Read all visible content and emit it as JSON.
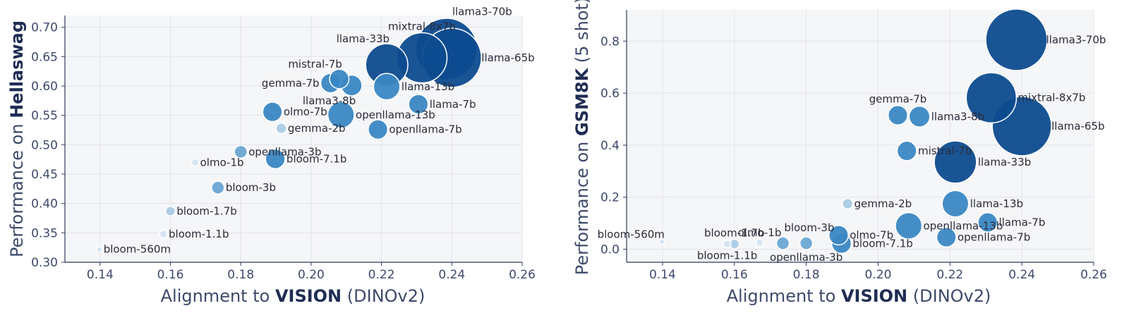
{
  "colors": {
    "plot_bg": "#f5f6f8",
    "grid": "#e2e4e8",
    "axis": "#2f3b5c",
    "scale": [
      "#d3e4f3",
      "#a9cbe6",
      "#6aa6d2",
      "#3a87c3",
      "#1c64ad",
      "#0d4b8f"
    ]
  },
  "chart_data": [
    {
      "type": "scatter",
      "id": "hellaswag",
      "xlabel_prefix": "Alignment to ",
      "xlabel_bold": "VISION",
      "xlabel_suffix": " (DINOv2)",
      "ylabel_prefix": "Performance on ",
      "ylabel_bold": "Hellaswag",
      "ylabel_suffix": "",
      "xlim": [
        0.13,
        0.26
      ],
      "ylim": [
        0.3,
        0.72
      ],
      "xticks": [
        0.14,
        0.16,
        0.18,
        0.2,
        0.22,
        0.24,
        0.26
      ],
      "xtick_labels": [
        "0.14",
        "0.16",
        "0.18",
        "0.20",
        "0.22",
        "0.24",
        "0.26"
      ],
      "yticks": [
        0.3,
        0.35,
        0.4,
        0.45,
        0.5,
        0.55,
        0.6,
        0.65,
        0.7
      ],
      "ytick_labels": [
        "0.30",
        "0.35",
        "0.40",
        "0.45",
        "0.50",
        "0.55",
        "0.60",
        "0.65",
        "0.70"
      ],
      "points": [
        {
          "name": "bloom-560m",
          "x": 0.1398,
          "y": 0.322,
          "size": 0.56,
          "label_pos": "right"
        },
        {
          "name": "bloom-1.1b",
          "x": 0.158,
          "y": 0.348,
          "size": 1.1,
          "label_pos": "right"
        },
        {
          "name": "bloom-1.7b",
          "x": 0.16,
          "y": 0.387,
          "size": 1.7,
          "label_pos": "right"
        },
        {
          "name": "bloom-3b",
          "x": 0.1735,
          "y": 0.427,
          "size": 3,
          "label_pos": "right"
        },
        {
          "name": "bloom-7.1b",
          "x": 0.1898,
          "y": 0.476,
          "size": 7.1,
          "label_pos": "right"
        },
        {
          "name": "olmo-1b",
          "x": 0.167,
          "y": 0.47,
          "size": 1,
          "label_pos": "right"
        },
        {
          "name": "openllama-3b",
          "x": 0.18,
          "y": 0.488,
          "size": 3,
          "label_pos": "right"
        },
        {
          "name": "gemma-2b",
          "x": 0.1915,
          "y": 0.528,
          "size": 2,
          "label_pos": "right"
        },
        {
          "name": "olmo-7b",
          "x": 0.189,
          "y": 0.556,
          "size": 7,
          "label_pos": "right"
        },
        {
          "name": "openllama-13b",
          "x": 0.2085,
          "y": 0.551,
          "size": 13,
          "label_pos": "right"
        },
        {
          "name": "openllama-7b",
          "x": 0.219,
          "y": 0.526,
          "size": 7,
          "label_pos": "right"
        },
        {
          "name": "gemma-7b",
          "x": 0.2055,
          "y": 0.605,
          "size": 7,
          "label_pos": "left"
        },
        {
          "name": "mistral-7b",
          "x": 0.208,
          "y": 0.612,
          "size": 7,
          "label_pos": "topleft"
        },
        {
          "name": "llama3-8b",
          "x": 0.2115,
          "y": 0.601,
          "size": 8,
          "label_pos": "belowleft"
        },
        {
          "name": "llama-13b",
          "x": 0.2215,
          "y": 0.599,
          "size": 13,
          "label_pos": "right"
        },
        {
          "name": "llama-7b",
          "x": 0.2305,
          "y": 0.569,
          "size": 7,
          "label_pos": "right"
        },
        {
          "name": "llama-33b",
          "x": 0.2215,
          "y": 0.636,
          "size": 33,
          "label_pos": "topleft"
        },
        {
          "name": "mixtral-8x7b",
          "x": 0.2315,
          "y": 0.648,
          "size": 46.7,
          "label_pos": "top"
        },
        {
          "name": "llama-65b",
          "x": 0.24,
          "y": 0.648,
          "size": 65,
          "label_pos": "right"
        },
        {
          "name": "llama3-70b",
          "x": 0.2385,
          "y": 0.663,
          "size": 70,
          "label_pos": "topright"
        }
      ]
    },
    {
      "type": "scatter",
      "id": "gsm8k",
      "xlabel_prefix": "Alignment to ",
      "xlabel_bold": "VISION",
      "xlabel_suffix": " (DINOv2)",
      "ylabel_prefix": "Performance on ",
      "ylabel_bold": "GSM8K",
      "ylabel_suffix": " (5 shot)",
      "xlim": [
        0.13,
        0.26
      ],
      "ylim": [
        -0.05,
        0.92
      ],
      "xticks": [
        0.14,
        0.16,
        0.18,
        0.2,
        0.22,
        0.24,
        0.26
      ],
      "xtick_labels": [
        "0.14",
        "0.16",
        "0.18",
        "0.20",
        "0.22",
        "0.24",
        "0.26"
      ],
      "yticks": [
        0.0,
        0.2,
        0.4,
        0.6,
        0.8
      ],
      "ytick_labels": [
        "0.0",
        "0.2",
        "0.4",
        "0.6",
        "0.8"
      ],
      "points": [
        {
          "name": "bloom-560m",
          "x": 0.1398,
          "y": 0.028,
          "size": 0.56,
          "label_pos": "topleft"
        },
        {
          "name": "bloom-1.1b",
          "x": 0.158,
          "y": 0.02,
          "size": 1.1,
          "label_pos": "below"
        },
        {
          "name": "bloom-1.7b",
          "x": 0.16,
          "y": 0.02,
          "size": 1.7,
          "label_pos": "top"
        },
        {
          "name": "olmo-1b",
          "x": 0.167,
          "y": 0.025,
          "size": 1,
          "label_pos": "top"
        },
        {
          "name": "bloom-3b",
          "x": 0.1735,
          "y": 0.023,
          "size": 3,
          "label_pos": "topright"
        },
        {
          "name": "openllama-3b",
          "x": 0.18,
          "y": 0.023,
          "size": 3,
          "label_pos": "below"
        },
        {
          "name": "bloom-7.1b",
          "x": 0.1898,
          "y": 0.022,
          "size": 7.1,
          "label_pos": "right"
        },
        {
          "name": "olmo-7b",
          "x": 0.189,
          "y": 0.054,
          "size": 7,
          "label_pos": "right"
        },
        {
          "name": "gemma-2b",
          "x": 0.1915,
          "y": 0.175,
          "size": 2,
          "label_pos": "right"
        },
        {
          "name": "openllama-13b",
          "x": 0.2085,
          "y": 0.09,
          "size": 13,
          "label_pos": "right"
        },
        {
          "name": "openllama-7b",
          "x": 0.219,
          "y": 0.046,
          "size": 7,
          "label_pos": "right"
        },
        {
          "name": "llama-7b",
          "x": 0.2305,
          "y": 0.103,
          "size": 7,
          "label_pos": "right"
        },
        {
          "name": "llama-13b",
          "x": 0.2215,
          "y": 0.175,
          "size": 13,
          "label_pos": "right"
        },
        {
          "name": "mistral-7b",
          "x": 0.208,
          "y": 0.378,
          "size": 7,
          "label_pos": "right"
        },
        {
          "name": "llama-33b",
          "x": 0.2215,
          "y": 0.335,
          "size": 33,
          "label_pos": "right"
        },
        {
          "name": "gemma-7b",
          "x": 0.2055,
          "y": 0.515,
          "size": 7,
          "label_pos": "top"
        },
        {
          "name": "llama3-8b",
          "x": 0.2115,
          "y": 0.51,
          "size": 8,
          "label_pos": "right"
        },
        {
          "name": "mixtral-8x7b",
          "x": 0.2315,
          "y": 0.582,
          "size": 46.7,
          "label_pos": "right"
        },
        {
          "name": "llama-65b",
          "x": 0.24,
          "y": 0.473,
          "size": 65,
          "label_pos": "right"
        },
        {
          "name": "llama3-70b",
          "x": 0.2385,
          "y": 0.805,
          "size": 70,
          "label_pos": "right"
        }
      ]
    }
  ]
}
